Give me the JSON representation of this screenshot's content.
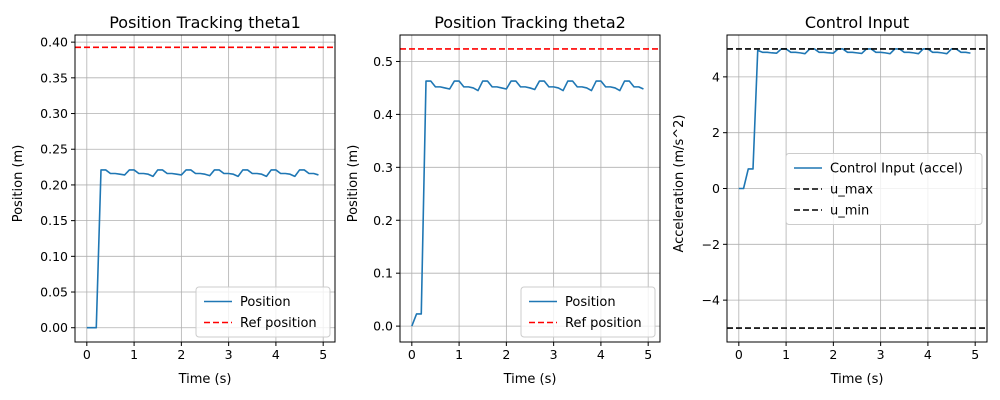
{
  "chart_data": [
    {
      "type": "line",
      "title": "Position Tracking theta1",
      "xlabel": "Time (s)",
      "ylabel": "Position (m)",
      "xlim": [
        -0.25,
        5.25
      ],
      "ylim": [
        -0.02,
        0.41
      ],
      "xticks": [
        0,
        1,
        2,
        3,
        4,
        5
      ],
      "xtick_labels": [
        "0",
        "1",
        "2",
        "3",
        "4",
        "5"
      ],
      "yticks": [
        0.0,
        0.05,
        0.1,
        0.15,
        0.2,
        0.25,
        0.3,
        0.35,
        0.4
      ],
      "ytick_labels": [
        "0.00",
        "0.05",
        "0.10",
        "0.15",
        "0.20",
        "0.25",
        "0.30",
        "0.35",
        "0.40"
      ],
      "grid": true,
      "legend_position": "lower right",
      "series": [
        {
          "name": "Position",
          "color": "#1f77b4",
          "style": "solid",
          "x": [
            0,
            0.1,
            0.2,
            0.3,
            0.4,
            0.5,
            0.6,
            0.7,
            0.8,
            0.9,
            1.0,
            1.1,
            1.2,
            1.3,
            1.4,
            1.5,
            1.6,
            1.7,
            1.8,
            1.9,
            2.0,
            2.1,
            2.2,
            2.3,
            2.4,
            2.5,
            2.6,
            2.7,
            2.8,
            2.9,
            3.0,
            3.1,
            3.2,
            3.3,
            3.4,
            3.5,
            3.6,
            3.7,
            3.8,
            3.9,
            4.0,
            4.1,
            4.2,
            4.3,
            4.4,
            4.5,
            4.6,
            4.7,
            4.8,
            4.9
          ],
          "y": [
            0.0,
            0.0,
            0.0,
            0.221,
            0.221,
            0.216,
            0.216,
            0.215,
            0.214,
            0.221,
            0.221,
            0.216,
            0.216,
            0.215,
            0.212,
            0.221,
            0.221,
            0.216,
            0.216,
            0.215,
            0.214,
            0.221,
            0.221,
            0.216,
            0.216,
            0.215,
            0.213,
            0.221,
            0.221,
            0.216,
            0.216,
            0.215,
            0.212,
            0.221,
            0.221,
            0.216,
            0.216,
            0.215,
            0.212,
            0.221,
            0.221,
            0.216,
            0.216,
            0.215,
            0.212,
            0.221,
            0.221,
            0.216,
            0.216,
            0.214
          ]
        },
        {
          "name": "Ref position",
          "color": "#ff0000",
          "style": "dashed",
          "hline": 0.3927
        }
      ]
    },
    {
      "type": "line",
      "title": "Position Tracking theta2",
      "xlabel": "Time (s)",
      "ylabel": "Position (m)",
      "xlim": [
        -0.25,
        5.25
      ],
      "ylim": [
        -0.03,
        0.55
      ],
      "xticks": [
        0,
        1,
        2,
        3,
        4,
        5
      ],
      "xtick_labels": [
        "0",
        "1",
        "2",
        "3",
        "4",
        "5"
      ],
      "yticks": [
        0.0,
        0.1,
        0.2,
        0.3,
        0.4,
        0.5
      ],
      "ytick_labels": [
        "0.0",
        "0.1",
        "0.2",
        "0.3",
        "0.4",
        "0.5"
      ],
      "grid": true,
      "legend_position": "lower right",
      "series": [
        {
          "name": "Position",
          "color": "#1f77b4",
          "style": "solid",
          "x": [
            0,
            0.1,
            0.2,
            0.3,
            0.4,
            0.5,
            0.6,
            0.7,
            0.8,
            0.9,
            1.0,
            1.1,
            1.2,
            1.3,
            1.4,
            1.5,
            1.6,
            1.7,
            1.8,
            1.9,
            2.0,
            2.1,
            2.2,
            2.3,
            2.4,
            2.5,
            2.6,
            2.7,
            2.8,
            2.9,
            3.0,
            3.1,
            3.2,
            3.3,
            3.4,
            3.5,
            3.6,
            3.7,
            3.8,
            3.9,
            4.0,
            4.1,
            4.2,
            4.3,
            4.4,
            4.5,
            4.6,
            4.7,
            4.8,
            4.9
          ],
          "y": [
            0.0,
            0.023,
            0.023,
            0.463,
            0.463,
            0.452,
            0.452,
            0.45,
            0.448,
            0.463,
            0.463,
            0.452,
            0.452,
            0.45,
            0.445,
            0.463,
            0.463,
            0.452,
            0.452,
            0.45,
            0.448,
            0.463,
            0.463,
            0.452,
            0.452,
            0.45,
            0.447,
            0.463,
            0.463,
            0.452,
            0.452,
            0.45,
            0.445,
            0.463,
            0.463,
            0.452,
            0.452,
            0.45,
            0.445,
            0.463,
            0.463,
            0.452,
            0.452,
            0.45,
            0.445,
            0.463,
            0.463,
            0.452,
            0.452,
            0.448
          ]
        },
        {
          "name": "Ref position",
          "color": "#ff0000",
          "style": "dashed",
          "hline": 0.5236
        }
      ]
    },
    {
      "type": "line",
      "title": "Control Input",
      "xlabel": "Time (s)",
      "ylabel": "Acceleration (m/s^2)",
      "xlim": [
        -0.25,
        5.25
      ],
      "ylim": [
        -5.5,
        5.5
      ],
      "xticks": [
        0,
        1,
        2,
        3,
        4,
        5
      ],
      "xtick_labels": [
        "0",
        "1",
        "2",
        "3",
        "4",
        "5"
      ],
      "yticks": [
        -4,
        -2,
        0,
        2,
        4
      ],
      "ytick_labels": [
        "−4",
        "−2",
        "0",
        "2",
        "4"
      ],
      "grid": true,
      "legend_position": "center right",
      "series": [
        {
          "name": "Control Input (accel)",
          "color": "#1f77b4",
          "style": "solid",
          "x": [
            0,
            0.1,
            0.2,
            0.3,
            0.4,
            0.5,
            0.6,
            0.7,
            0.8,
            0.9,
            1.0,
            1.1,
            1.2,
            1.3,
            1.4,
            1.5,
            1.6,
            1.7,
            1.8,
            1.9,
            2.0,
            2.1,
            2.2,
            2.3,
            2.4,
            2.5,
            2.6,
            2.7,
            2.8,
            2.9,
            3.0,
            3.1,
            3.2,
            3.3,
            3.4,
            3.5,
            3.6,
            3.7,
            3.8,
            3.9,
            4.0,
            4.1,
            4.2,
            4.3,
            4.4,
            4.5,
            4.6,
            4.7,
            4.8,
            4.9
          ],
          "y": [
            0.0,
            0.0,
            0.7,
            0.7,
            4.95,
            4.88,
            4.88,
            4.86,
            4.85,
            5.0,
            5.0,
            4.88,
            4.88,
            4.86,
            4.83,
            5.0,
            5.0,
            4.88,
            4.88,
            4.86,
            4.85,
            5.0,
            5.0,
            4.88,
            4.88,
            4.86,
            4.84,
            5.0,
            5.0,
            4.88,
            4.88,
            4.86,
            4.83,
            5.0,
            5.0,
            4.88,
            4.88,
            4.86,
            4.83,
            5.0,
            5.0,
            4.88,
            4.88,
            4.86,
            4.83,
            5.0,
            5.0,
            4.88,
            4.88,
            4.85
          ]
        },
        {
          "name": "u_max",
          "color": "#000000",
          "style": "dashed",
          "hline": 5
        },
        {
          "name": "u_min",
          "color": "#000000",
          "style": "dashed",
          "hline": -5
        }
      ]
    }
  ]
}
